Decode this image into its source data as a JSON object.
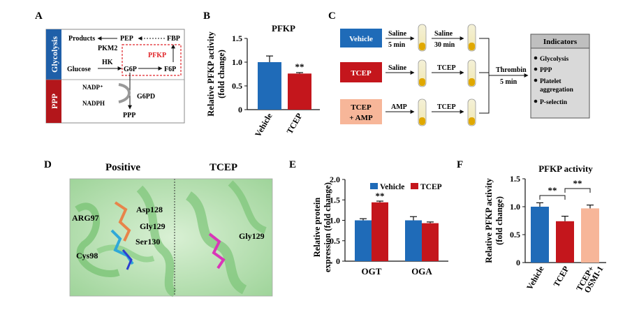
{
  "panels": {
    "a": {
      "letter": "A"
    },
    "b": {
      "letter": "B"
    },
    "c": {
      "letter": "C"
    },
    "d": {
      "letter": "D"
    },
    "e": {
      "letter": "E"
    },
    "f": {
      "letter": "F"
    }
  },
  "pathway": {
    "glycolysis_label": "Glycolysis",
    "ppp_label": "PPP",
    "products": "Products",
    "pep": "PEP",
    "fbp": "FBP",
    "pkm2": "PKM2",
    "pfkp": "PFKP",
    "glucose": "Glucose",
    "hk": "HK",
    "g6p": "G6P",
    "f6p": "F6P",
    "nadp": "NADP⁺",
    "nadph": "NADPH",
    "g6pd": "G6PD",
    "ppp_out": "PPP",
    "colors": {
      "glycolysis": "#1f5fa8",
      "ppp": "#b3161b",
      "pfkp_box": "#e0262a"
    }
  },
  "workflow": {
    "groups": [
      {
        "label": "Vehicle",
        "color": "#1f6bb8",
        "step1": "Saline",
        "step1_time": "5 min",
        "step2": "Saline",
        "step2_time": "30 min"
      },
      {
        "label": "TCEP",
        "color": "#c4161c",
        "step1": "Saline",
        "step1_time": "",
        "step2": "TCEP",
        "step2_time": ""
      },
      {
        "label_line1": "TCEP",
        "label_line2": "+ AMP",
        "color": "#f7b699",
        "step1": "AMP",
        "step1_time": "",
        "step2": "TCEP",
        "step2_time": ""
      }
    ],
    "thrombin": "Thrombin",
    "thrombin_time": "5 min",
    "indicators_title": "Indicators",
    "indicators": [
      "Glycolysis",
      "PPP",
      "Platelet",
      "aggregation",
      "P-selectin"
    ]
  },
  "structure": {
    "positive_title": "Positive",
    "tcep_title": "TCEP",
    "labels_left": [
      "Asp128",
      "ARG97",
      "Gly129",
      "Ser130",
      "Cys98"
    ],
    "labels_right": [
      "Gly129"
    ]
  },
  "chart_data": [
    {
      "id": "B",
      "type": "bar",
      "title": "PFKP",
      "ylabel": "Relative PFKP activity\n(fold change)",
      "categories": [
        "Vehicle",
        "TCEP"
      ],
      "values": [
        1.0,
        0.76
      ],
      "errors": [
        0.13,
        0.02
      ],
      "colors": [
        "#1f6bb8",
        "#c4161c"
      ],
      "significance": [
        "",
        "**"
      ],
      "ylim": [
        0,
        1.5
      ],
      "yticks": [
        "0",
        "0.5",
        "1.0",
        "1.5"
      ]
    },
    {
      "id": "E",
      "type": "bar",
      "title": "",
      "ylabel": "Relative protein\nexpression (fold change)",
      "categories": [
        "OGT",
        "OGA"
      ],
      "series": [
        {
          "name": "Vehicle",
          "color": "#1f6bb8",
          "values": [
            1.0,
            1.0
          ],
          "errors": [
            0.04,
            0.09
          ]
        },
        {
          "name": "TCEP",
          "color": "#c4161c",
          "values": [
            1.44,
            0.93
          ],
          "errors": [
            0.03,
            0.03
          ]
        }
      ],
      "significance": [
        "**",
        ""
      ],
      "ylim": [
        0,
        2.0
      ],
      "yticks": [
        "0",
        "0.5",
        "1.0",
        "1.5",
        "2.0"
      ],
      "legend": "top-right"
    },
    {
      "id": "F",
      "type": "bar",
      "title": "PFKP activity",
      "ylabel": "Relative PFKP activity\n(fold change)",
      "categories": [
        "Vehicle",
        "TCEP",
        "TCEP+\nOSMI-1"
      ],
      "values": [
        1.0,
        0.74,
        0.97
      ],
      "errors": [
        0.07,
        0.09,
        0.06
      ],
      "colors": [
        "#1f6bb8",
        "#c4161c",
        "#f7b699"
      ],
      "brackets": [
        {
          "from": 0,
          "to": 1,
          "label": "**"
        },
        {
          "from": 1,
          "to": 2,
          "label": "**"
        }
      ],
      "ylim": [
        0,
        1.5
      ],
      "yticks": [
        "0",
        "0.5",
        "1.0",
        "1.5"
      ]
    }
  ]
}
